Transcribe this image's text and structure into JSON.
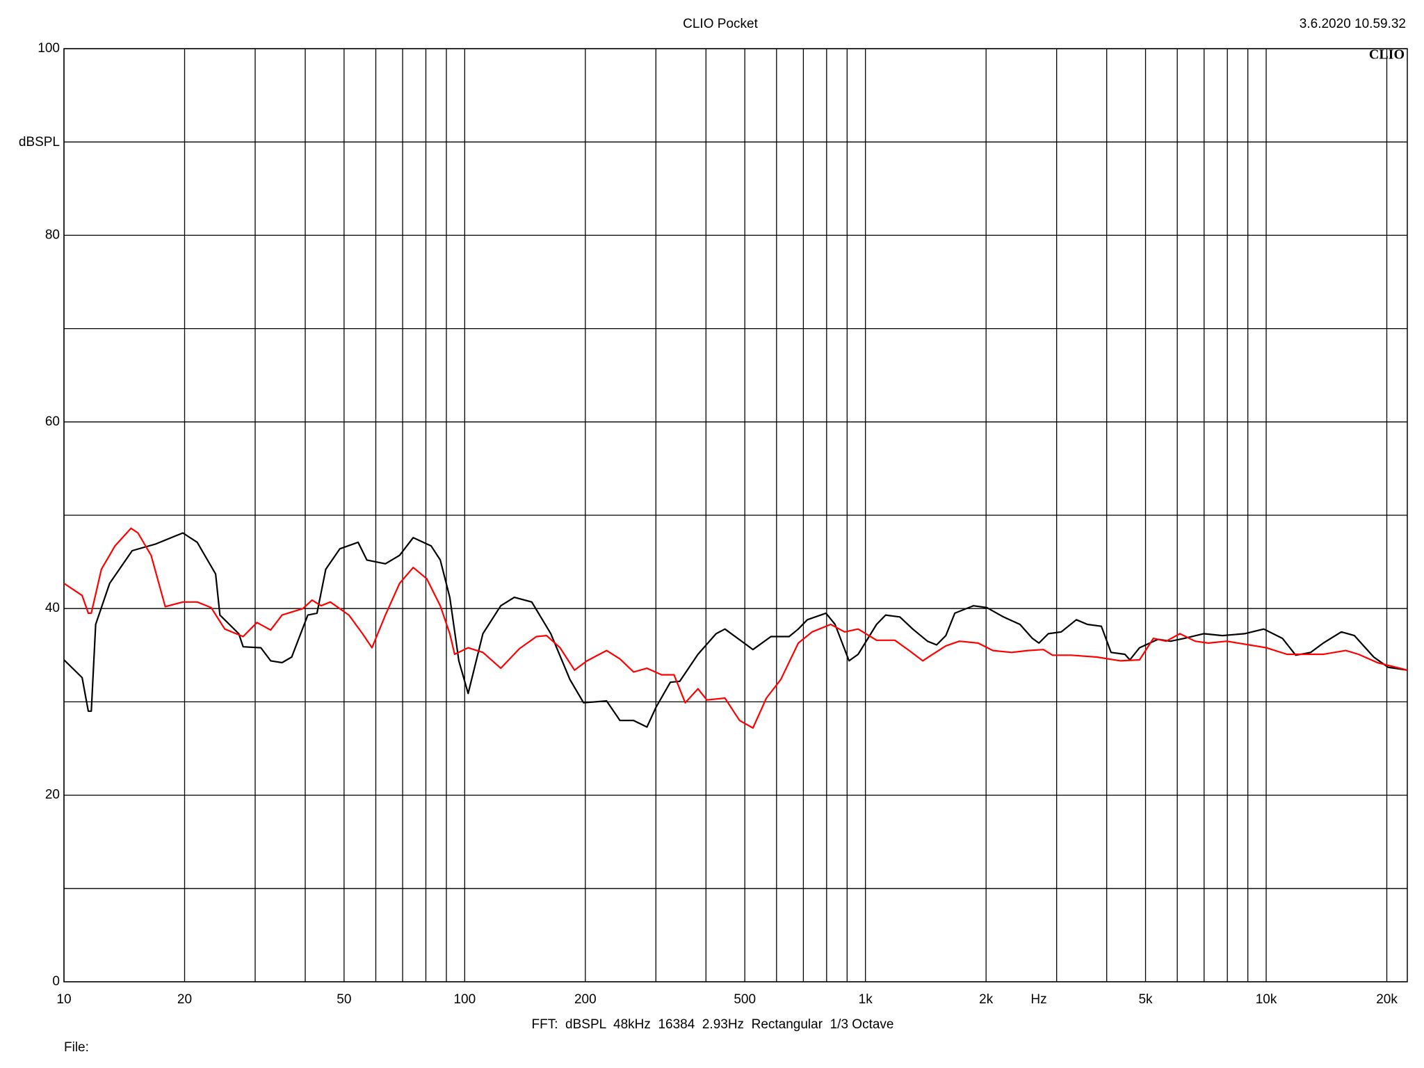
{
  "chart_data": {
    "type": "line",
    "title": "CLIO Pocket",
    "timestamp": "3.6.2020 10.59.32",
    "logo": "CLIO",
    "y_label": "dBSPL",
    "x_label": "Hz",
    "footer": "FFT:  dBSPL  48kHz  16384  2.93Hz  Rectangular  1/3 Octave",
    "file_label": "File:",
    "x_scale": "log",
    "grid": true,
    "xlim": [
      10,
      22500
    ],
    "ylim": [
      0,
      100
    ],
    "yticks": [
      0,
      20,
      40,
      60,
      80,
      100
    ],
    "yminor": [
      10,
      30,
      50,
      70,
      90
    ],
    "xticks": [
      10,
      20,
      50,
      100,
      200,
      500,
      {
        "value": 1000,
        "label": "1k"
      },
      {
        "value": 2000,
        "label": "2k"
      },
      {
        "value": 5000,
        "label": "5k"
      },
      {
        "value": 10000,
        "label": "10k"
      },
      {
        "value": 20000,
        "label": "20k"
      }
    ],
    "xminor": [
      30,
      40,
      60,
      70,
      80,
      90,
      300,
      400,
      600,
      700,
      800,
      900,
      3000,
      4000,
      6000,
      7000,
      8000,
      9000
    ],
    "series": [
      {
        "color": "#000000",
        "x": [
          10,
          11.1,
          11.5,
          11.7,
          12,
          13,
          14.8,
          16.9,
          19.8,
          21.5,
          23.9,
          24.5,
          27.3,
          28,
          31,
          32.8,
          35,
          37,
          40.6,
          42.8,
          45,
          48.8,
          54.2,
          57,
          63.4,
          68.8,
          74.4,
          82.5,
          86.9,
          91.8,
          96.7,
          102,
          111,
          123,
          133,
          147,
          164,
          183,
          198,
          226,
          244,
          264,
          285,
          300,
          326,
          344,
          382,
          424,
          446,
          498,
          524,
          581,
          645,
          680,
          716,
          797,
          840,
          910,
          959,
          1066,
          1123,
          1219,
          1312,
          1428,
          1505,
          1587,
          1671,
          1860,
          2010,
          2210,
          2430,
          2610,
          2710,
          2860,
          3080,
          3360,
          3580,
          3880,
          4100,
          4440,
          4570,
          4830,
          5370,
          5770,
          6250,
          6980,
          7780,
          8830,
          9860,
          10980,
          11850,
          12920,
          13880,
          15400,
          16600,
          18550,
          20150,
          22500
        ],
        "values": [
          34.5,
          32.6,
          29,
          29,
          38.3,
          42.7,
          46.2,
          46.9,
          48.1,
          47.1,
          43.7,
          39.3,
          37.3,
          35.9,
          35.8,
          34.4,
          34.2,
          34.8,
          39.3,
          39.5,
          44.2,
          46.4,
          47.1,
          45.2,
          44.8,
          45.7,
          47.6,
          46.7,
          45.2,
          41.2,
          34.4,
          30.9,
          37.3,
          40.3,
          41.2,
          40.7,
          37.3,
          32.4,
          29.9,
          30.1,
          28,
          28,
          27.3,
          29.4,
          32.1,
          32.2,
          35.1,
          37.3,
          37.8,
          36.3,
          35.6,
          37,
          37,
          37.8,
          38.8,
          39.5,
          38.3,
          34.4,
          35.1,
          38.3,
          39.3,
          39.1,
          37.8,
          36.5,
          36.1,
          37.1,
          39.5,
          40.3,
          40.1,
          39.1,
          38.3,
          36.8,
          36.3,
          37.3,
          37.5,
          38.8,
          38.3,
          38.1,
          35.3,
          35.1,
          34.5,
          35.8,
          36.7,
          36.5,
          36.8,
          37.3,
          37.1,
          37.3,
          37.8,
          36.8,
          35,
          35.3,
          36.3,
          37.5,
          37.1,
          34.8,
          33.7,
          33.4
        ]
      },
      {
        "color": "#ff0000",
        "x": [
          10,
          11.1,
          11.5,
          11.7,
          12.4,
          13.4,
          14.7,
          15.3,
          16.5,
          17.9,
          19.8,
          21.5,
          23.3,
          25.2,
          28,
          30.3,
          32.8,
          35,
          39.5,
          41.6,
          43.8,
          46.2,
          51.4,
          55.6,
          58.7,
          63.4,
          68.8,
          74.4,
          80.4,
          86.9,
          91.8,
          94.4,
          102,
          111,
          123,
          137,
          151,
          160,
          173,
          188,
          202,
          226,
          244,
          264,
          285,
          310,
          333,
          355,
          382,
          402,
          446,
          485,
          524,
          566,
          615,
          680,
          736,
          819,
          887,
          959,
          1066,
          1184,
          1286,
          1390,
          1460,
          1587,
          1715,
          1910,
          2080,
          2315,
          2545,
          2780,
          2930,
          3260,
          3780,
          4330,
          4830,
          5230,
          5630,
          6090,
          6650,
          7170,
          7980,
          9070,
          10000,
          11270,
          12600,
          13880,
          15800,
          17000,
          18950,
          22500
        ],
        "values": [
          42.7,
          41.4,
          39.5,
          39.5,
          44.2,
          46.7,
          48.6,
          48.1,
          45.7,
          40.2,
          40.7,
          40.7,
          40.1,
          37.8,
          37,
          38.5,
          37.7,
          39.3,
          40,
          40.9,
          40.3,
          40.7,
          39.3,
          37.3,
          35.8,
          39.3,
          42.7,
          44.4,
          43.2,
          40.3,
          37.3,
          35.1,
          35.8,
          35.3,
          33.6,
          35.7,
          37,
          37.1,
          35.8,
          33.4,
          34.4,
          35.5,
          34.6,
          33.2,
          33.6,
          32.9,
          32.9,
          29.9,
          31.4,
          30.2,
          30.4,
          28,
          27.2,
          30.4,
          32.4,
          36.3,
          37.5,
          38.3,
          37.5,
          37.8,
          36.6,
          36.6,
          35.5,
          34.4,
          35,
          36,
          36.5,
          36.3,
          35.5,
          35.3,
          35.5,
          35.6,
          35,
          35,
          34.8,
          34.4,
          34.5,
          36.8,
          36.5,
          37.3,
          36.5,
          36.3,
          36.5,
          36.1,
          35.8,
          35.1,
          35.1,
          35.1,
          35.5,
          35.1,
          34.2,
          33.4
        ]
      }
    ]
  }
}
